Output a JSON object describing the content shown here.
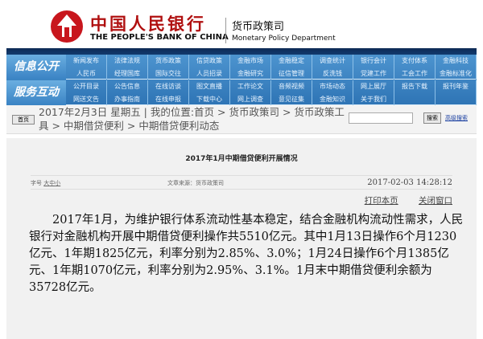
{
  "header": {
    "bank_cn": "中国人民银行",
    "bank_en": "THE PEOPLE'S BANK OF CHINA",
    "dept_cn": "货币政策司",
    "dept_en": "Monetary Policy Department"
  },
  "nav": {
    "sections": [
      {
        "title": "信息公开",
        "items": [
          "新闻发布",
          "法律法规",
          "货币政策",
          "信贷政策",
          "金融市场",
          "金融稳定",
          "调查统计",
          "银行会计",
          "支付体系",
          "金融科技",
          "人民币",
          "经理国库",
          "国际交往",
          "人员招录",
          "金融研究",
          "征信管理",
          "反洗钱",
          "党建工作",
          "工会工作",
          "金融标准化"
        ]
      },
      {
        "title": "服务互动",
        "items": [
          "公开目录",
          "公告信息",
          "在线访谈",
          "图文直播",
          "工作论文",
          "音频视频",
          "市场动态",
          "网上展厅",
          "报告下载",
          "报刊年鉴",
          "网送文告",
          "办事指南",
          "在线申报",
          "下载中心",
          "网上调查",
          "意见征集",
          "金融知识",
          "关于我们",
          "",
          ""
        ]
      }
    ]
  },
  "breadcrumb": {
    "home": "首页",
    "text": "2017年2月3日 星期五 | 我的位置:首页 > 货币政策司 > 货币政策工具 > 中期借贷便利 > 中期借贷便利动态",
    "search_button": "搜索",
    "advanced_search": "高级搜索",
    "search_value": ""
  },
  "article": {
    "title": "2017年1月中期借贷便利开展情况",
    "font_label": "字号",
    "font_sizes": [
      "大",
      "中",
      "小"
    ],
    "source": "文章来源：货币政策司",
    "date": "2017-02-03 14:28:12",
    "print": "打印本页",
    "close": "关闭窗口",
    "body": "2017年1月，为维护银行体系流动性基本稳定，结合金融机构流动性需求，人民银行对金融机构开展中期借贷便利操作共5510亿元。其中1月13日操作6个月1230亿元、1年期1825亿元，利率分别为2.85%、3.0%；1月24日操作6个月1385亿元、1年期1070亿元，利率分别为2.95%、3.1%。1月末中期借贷便利余额为35728亿元。"
  }
}
